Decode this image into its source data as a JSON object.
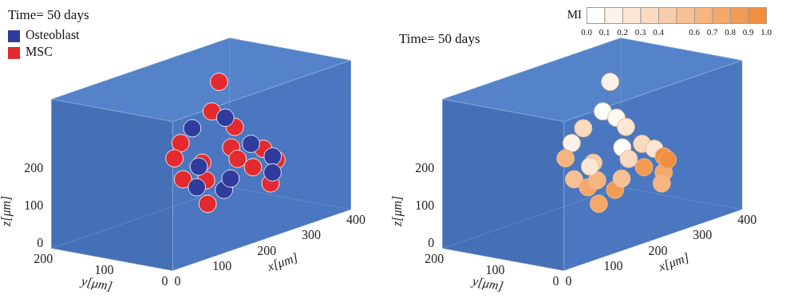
{
  "chart_data": [
    {
      "type": "scatter3d",
      "title": "Time= 50 days",
      "xlabel": "x[μm]",
      "ylabel": "y[μm]",
      "zlabel": "z[μm]",
      "xlim": [
        0,
        400
      ],
      "ylim": [
        0,
        200
      ],
      "zlim": [
        0,
        400
      ],
      "xticks": [
        0,
        100,
        200,
        300,
        400
      ],
      "yticks": [
        0,
        100,
        200
      ],
      "zticks": [
        0,
        100,
        200
      ],
      "legend": "upper left",
      "series": [
        {
          "name": "Osteoblast",
          "color": "#2f3c9e",
          "x": [
            254,
            207,
            298,
            374,
            360,
            163,
            251,
            293,
            181
          ],
          "y": [
            100,
            120,
            90,
            110,
            100,
            80,
            100,
            120,
            90
          ],
          "z": [
            276,
            261,
            191,
            120,
            86,
            133,
            84,
            91,
            178
          ]
        },
        {
          "name": "MSC",
          "color": "#e32a2e",
          "x": [
            240,
            210,
            289,
            181,
            240,
            339,
            140,
            216,
            268,
            316,
            396,
            132,
            211,
            228,
            342
          ],
          "y": [
            100,
            90,
            110,
            120,
            80,
            100,
            100,
            110,
            90,
            100,
            120,
            80,
            100,
            110,
            90
          ],
          "z": [
            378,
            314,
            234,
            232,
            208,
            158,
            214,
            168,
            163,
            118,
            99,
            167,
            126,
            53,
            67
          ]
        }
      ]
    },
    {
      "type": "scatter3d",
      "title": "Time= 50 days",
      "xlabel": "x[μm]",
      "ylabel": "y[μm]",
      "zlabel": "z[μm]",
      "xlim": [
        0,
        400
      ],
      "ylim": [
        0,
        200
      ],
      "zlim": [
        0,
        400
      ],
      "xticks": [
        0,
        100,
        200,
        300,
        400
      ],
      "yticks": [
        0,
        100,
        200
      ],
      "zticks": [
        0,
        100,
        200
      ],
      "x": [
        240,
        210,
        254,
        289,
        207,
        181,
        240,
        298,
        339,
        374,
        140,
        216,
        268,
        316,
        360,
        396,
        132,
        163,
        211,
        251,
        293,
        228,
        181,
        342
      ],
      "y": [
        100,
        90,
        100,
        110,
        120,
        120,
        80,
        90,
        100,
        110,
        100,
        110,
        90,
        100,
        100,
        120,
        80,
        80,
        100,
        100,
        120,
        110,
        90,
        90
      ],
      "z": [
        378,
        314,
        276,
        234,
        261,
        232,
        208,
        191,
        158,
        120,
        214,
        168,
        163,
        118,
        86,
        99,
        167,
        133,
        126,
        84,
        91,
        53,
        178,
        67
      ],
      "values": [
        0.1,
        0,
        0.05,
        0.2,
        0.3,
        0.1,
        0,
        0.3,
        0.2,
        0.9,
        0.6,
        0.4,
        0.3,
        0.8,
        0.7,
        0.9,
        0.5,
        0.7,
        0.6,
        0.8,
        0.5,
        0.7,
        0.2,
        0.6
      ],
      "colorbar": {
        "label": "MI",
        "range": [
          0,
          1
        ],
        "ticks": [
          {
            "value": 0,
            "label": "0.0"
          },
          0.1,
          0.2,
          0.3,
          0.4,
          0.6,
          0.7,
          0.8,
          0.9,
          {
            "value": 1,
            "label": "1.0"
          }
        ]
      }
    }
  ]
}
